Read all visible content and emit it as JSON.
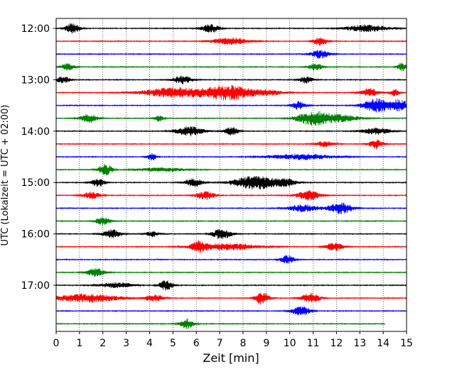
{
  "chart_data": {
    "type": "line",
    "chart_kind": "helicorder",
    "xlabel": "Zeit  [min]",
    "ylabel": "UTC (Lokalzeit = UTC + 02:00)",
    "xlim": [
      0,
      15
    ],
    "x_ticks": [
      0,
      1,
      2,
      3,
      4,
      5,
      6,
      7,
      8,
      9,
      10,
      11,
      12,
      13,
      14,
      15
    ],
    "x_grid": "dotted",
    "trace_interval_min": 15,
    "y_tick_labels": [
      "12:00",
      "13:00",
      "14:00",
      "15:00",
      "16:00",
      "17:00"
    ],
    "trace_colors": [
      "#000000",
      "#ff0000",
      "#0000ff",
      "#008000"
    ],
    "traces": [
      {
        "start": "12:00",
        "end_min": 15,
        "base_amp": 0.8,
        "bursts": [
          {
            "t": 0.7,
            "amp": 7,
            "w": 0.3
          },
          {
            "t": 6.6,
            "amp": 6,
            "w": 0.4
          },
          {
            "t": 13.3,
            "amp": 5,
            "w": 0.9
          }
        ]
      },
      {
        "start": "12:15",
        "end_min": 15,
        "base_amp": 0.8,
        "bursts": [
          {
            "t": 7.5,
            "amp": 5,
            "w": 0.8
          },
          {
            "t": 11.3,
            "amp": 6,
            "w": 0.3
          }
        ]
      },
      {
        "start": "12:30",
        "end_min": 15,
        "base_amp": 0.8,
        "bursts": [
          {
            "t": 11.3,
            "amp": 6,
            "w": 0.4
          }
        ]
      },
      {
        "start": "12:45",
        "end_min": 15,
        "base_amp": 0.8,
        "bursts": [
          {
            "t": 0.5,
            "amp": 5,
            "w": 0.3
          },
          {
            "t": 11.1,
            "amp": 5,
            "w": 0.3
          },
          {
            "t": 14.8,
            "amp": 6,
            "w": 0.2
          }
        ]
      },
      {
        "start": "13:00",
        "end_min": 15,
        "base_amp": 0.8,
        "bursts": [
          {
            "t": 0.3,
            "amp": 5,
            "w": 0.3
          },
          {
            "t": 5.4,
            "amp": 6,
            "w": 0.4
          },
          {
            "t": 10.7,
            "amp": 5,
            "w": 0.3
          }
        ]
      },
      {
        "start": "13:15",
        "end_min": 15,
        "base_amp": 0.8,
        "bursts": [
          {
            "t": 5.2,
            "amp": 7,
            "w": 1.5
          },
          {
            "t": 7.4,
            "amp": 10,
            "w": 0.9
          },
          {
            "t": 9.0,
            "amp": 4,
            "w": 0.8
          },
          {
            "t": 13.4,
            "amp": 6,
            "w": 0.4
          },
          {
            "t": 14.5,
            "amp": 5,
            "w": 0.2
          }
        ]
      },
      {
        "start": "13:30",
        "end_min": 15,
        "base_amp": 0.8,
        "bursts": [
          {
            "t": 10.4,
            "amp": 6,
            "w": 0.3
          },
          {
            "t": 13.7,
            "amp": 10,
            "w": 0.6
          },
          {
            "t": 14.7,
            "amp": 8,
            "w": 0.4
          }
        ]
      },
      {
        "start": "13:45",
        "end_min": 15,
        "base_amp": 0.8,
        "bursts": [
          {
            "t": 1.4,
            "amp": 6,
            "w": 0.4
          },
          {
            "t": 4.4,
            "amp": 4,
            "w": 0.2
          },
          {
            "t": 11.0,
            "amp": 10,
            "w": 0.7
          },
          {
            "t": 12.2,
            "amp": 5,
            "w": 0.8
          }
        ]
      },
      {
        "start": "14:00",
        "end_min": 15,
        "base_amp": 0.8,
        "bursts": [
          {
            "t": 5.7,
            "amp": 7,
            "w": 0.6
          },
          {
            "t": 7.5,
            "amp": 6,
            "w": 0.3
          },
          {
            "t": 13.7,
            "amp": 5,
            "w": 0.6
          }
        ]
      },
      {
        "start": "14:15",
        "end_min": 15,
        "base_amp": 0.8,
        "bursts": [
          {
            "t": 11.5,
            "amp": 4,
            "w": 0.4
          },
          {
            "t": 13.7,
            "amp": 7,
            "w": 0.3
          }
        ]
      },
      {
        "start": "14:30",
        "end_min": 15,
        "base_amp": 0.8,
        "bursts": [
          {
            "t": 4.1,
            "amp": 5,
            "w": 0.2
          },
          {
            "t": 10.5,
            "amp": 4,
            "w": 1.4
          }
        ]
      },
      {
        "start": "14:45",
        "end_min": 15,
        "base_amp": 0.8,
        "bursts": [
          {
            "t": 2.1,
            "amp": 8,
            "w": 0.3
          },
          {
            "t": 4.5,
            "amp": 3,
            "w": 1.0
          }
        ]
      },
      {
        "start": "15:00",
        "end_min": 15,
        "base_amp": 0.8,
        "bursts": [
          {
            "t": 1.8,
            "amp": 6,
            "w": 0.3
          },
          {
            "t": 5.9,
            "amp": 6,
            "w": 0.4
          },
          {
            "t": 8.5,
            "amp": 10,
            "w": 0.9
          },
          {
            "t": 9.8,
            "amp": 5,
            "w": 0.5
          }
        ]
      },
      {
        "start": "15:15",
        "end_min": 15,
        "base_amp": 0.8,
        "bursts": [
          {
            "t": 1.5,
            "amp": 5,
            "w": 0.4
          },
          {
            "t": 6.4,
            "amp": 6,
            "w": 0.4
          },
          {
            "t": 10.8,
            "amp": 7,
            "w": 0.5
          }
        ]
      },
      {
        "start": "15:30",
        "end_min": 15,
        "base_amp": 0.8,
        "bursts": [
          {
            "t": 10.6,
            "amp": 5,
            "w": 0.7
          },
          {
            "t": 12.2,
            "amp": 8,
            "w": 0.5
          }
        ]
      },
      {
        "start": "15:45",
        "end_min": 15,
        "base_amp": 0.8,
        "bursts": [
          {
            "t": 2.0,
            "amp": 6,
            "w": 0.3
          }
        ]
      },
      {
        "start": "16:00",
        "end_min": 15,
        "base_amp": 0.8,
        "bursts": [
          {
            "t": 2.4,
            "amp": 6,
            "w": 0.4
          },
          {
            "t": 4.1,
            "amp": 4,
            "w": 0.3
          },
          {
            "t": 7.1,
            "amp": 8,
            "w": 0.4
          }
        ]
      },
      {
        "start": "16:15",
        "end_min": 15,
        "base_amp": 0.8,
        "bursts": [
          {
            "t": 6.1,
            "amp": 7,
            "w": 0.3
          },
          {
            "t": 7.3,
            "amp": 5,
            "w": 1.4
          },
          {
            "t": 11.9,
            "amp": 6,
            "w": 0.4
          }
        ]
      },
      {
        "start": "16:30",
        "end_min": 15,
        "base_amp": 0.8,
        "bursts": [
          {
            "t": 9.9,
            "amp": 6,
            "w": 0.3
          }
        ]
      },
      {
        "start": "16:45",
        "end_min": 15,
        "base_amp": 0.8,
        "bursts": [
          {
            "t": 1.7,
            "amp": 6,
            "w": 0.4
          }
        ]
      },
      {
        "start": "17:00",
        "end_min": 15,
        "base_amp": 0.8,
        "bursts": [
          {
            "t": 2.6,
            "amp": 4,
            "w": 0.7
          },
          {
            "t": 4.7,
            "amp": 7,
            "w": 0.3
          }
        ]
      },
      {
        "start": "17:15",
        "end_min": 15,
        "base_amp": 0.8,
        "bursts": [
          {
            "t": 1.3,
            "amp": 6,
            "w": 1.4
          },
          {
            "t": 4.2,
            "amp": 5,
            "w": 0.4
          },
          {
            "t": 8.8,
            "amp": 9,
            "w": 0.3
          },
          {
            "t": 10.9,
            "amp": 7,
            "w": 0.4
          }
        ]
      },
      {
        "start": "17:30",
        "end_min": 15,
        "base_amp": 0.8,
        "bursts": [
          {
            "t": 10.5,
            "amp": 7,
            "w": 0.4
          }
        ]
      },
      {
        "start": "17:45",
        "end_min": 14.1,
        "base_amp": 0.8,
        "bursts": [
          {
            "t": 5.6,
            "amp": 7,
            "w": 0.3
          }
        ]
      }
    ]
  }
}
